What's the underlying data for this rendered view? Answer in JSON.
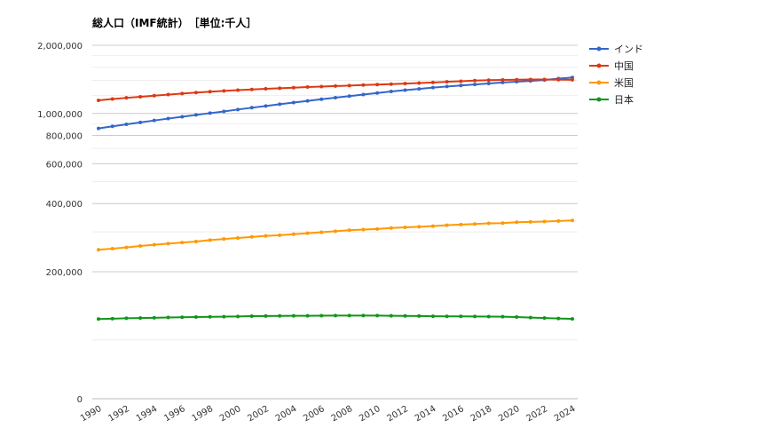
{
  "chart_data": {
    "type": "line",
    "title": "総人口（IMF統計）　［単位:千人］",
    "x": [
      1990,
      1991,
      1992,
      1993,
      1994,
      1995,
      1996,
      1997,
      1998,
      1999,
      2000,
      2001,
      2002,
      2003,
      2004,
      2005,
      2006,
      2007,
      2008,
      2009,
      2010,
      2011,
      2012,
      2013,
      2014,
      2015,
      2016,
      2017,
      2018,
      2019,
      2020,
      2021,
      2022,
      2023,
      2024
    ],
    "x_tick_labels": [
      "1990",
      "1992",
      "1994",
      "1996",
      "1998",
      "2000",
      "2002",
      "2004",
      "2006",
      "2008",
      "2010",
      "2012",
      "2014",
      "2016",
      "2018",
      "2020",
      "2022",
      "2024"
    ],
    "y_tick_labels": [
      {
        "value": 0,
        "label": "0"
      },
      {
        "value": 200000,
        "label": "200,000"
      },
      {
        "value": 400000,
        "label": "400,000"
      },
      {
        "value": 600000,
        "label": "600,000"
      },
      {
        "value": 800000,
        "label": "800,000"
      },
      {
        "value": 1000000,
        "label": "1,000,000"
      },
      {
        "value": 2000000,
        "label": "2,000,000"
      }
    ],
    "y_scale": "log (0 shown at bottom)",
    "grid": true,
    "legend_position": "right",
    "series": [
      {
        "name": "インド",
        "color": "#3366cc",
        "values": [
          859000,
          877000,
          895000,
          913000,
          931000,
          949000,
          967000,
          985000,
          1003000,
          1021000,
          1041000,
          1060000,
          1079000,
          1098000,
          1117000,
          1136000,
          1155000,
          1174000,
          1193000,
          1212000,
          1231000,
          1250000,
          1267000,
          1284000,
          1301000,
          1315000,
          1329000,
          1343000,
          1357000,
          1371000,
          1381000,
          1392000,
          1405000,
          1425000,
          1441000
        ]
      },
      {
        "name": "中国",
        "color": "#dc3912",
        "values": [
          1143000,
          1158000,
          1172000,
          1185000,
          1198000,
          1211000,
          1224000,
          1236000,
          1248000,
          1258000,
          1267000,
          1276000,
          1285000,
          1292000,
          1300000,
          1308000,
          1314000,
          1321000,
          1328000,
          1335000,
          1341000,
          1348000,
          1355000,
          1363000,
          1371000,
          1380000,
          1388000,
          1397000,
          1403000,
          1407000,
          1410000,
          1412000,
          1412000,
          1410000,
          1408000
        ]
      },
      {
        "name": "米国",
        "color": "#ff9900",
        "values": [
          250000,
          253000,
          256000,
          260000,
          263000,
          266000,
          269000,
          272000,
          276000,
          279000,
          282000,
          285000,
          288000,
          290000,
          293000,
          296000,
          299000,
          302000,
          305000,
          307000,
          309000,
          312000,
          314000,
          316000,
          318000,
          321000,
          323000,
          325000,
          327000,
          328000,
          331000,
          332000,
          333000,
          335000,
          337000
        ]
      },
      {
        "name": "日本",
        "color": "#109618",
        "values": [
          123611,
          124101,
          124567,
          124938,
          125265,
          125570,
          125859,
          126157,
          126472,
          126667,
          126926,
          127316,
          127486,
          127694,
          127787,
          127768,
          127901,
          128033,
          128084,
          128032,
          128057,
          127834,
          127593,
          127414,
          127237,
          127095,
          127042,
          126919,
          126749,
          126555,
          126146,
          125502,
          124947,
          124352,
          123800
        ]
      }
    ]
  }
}
